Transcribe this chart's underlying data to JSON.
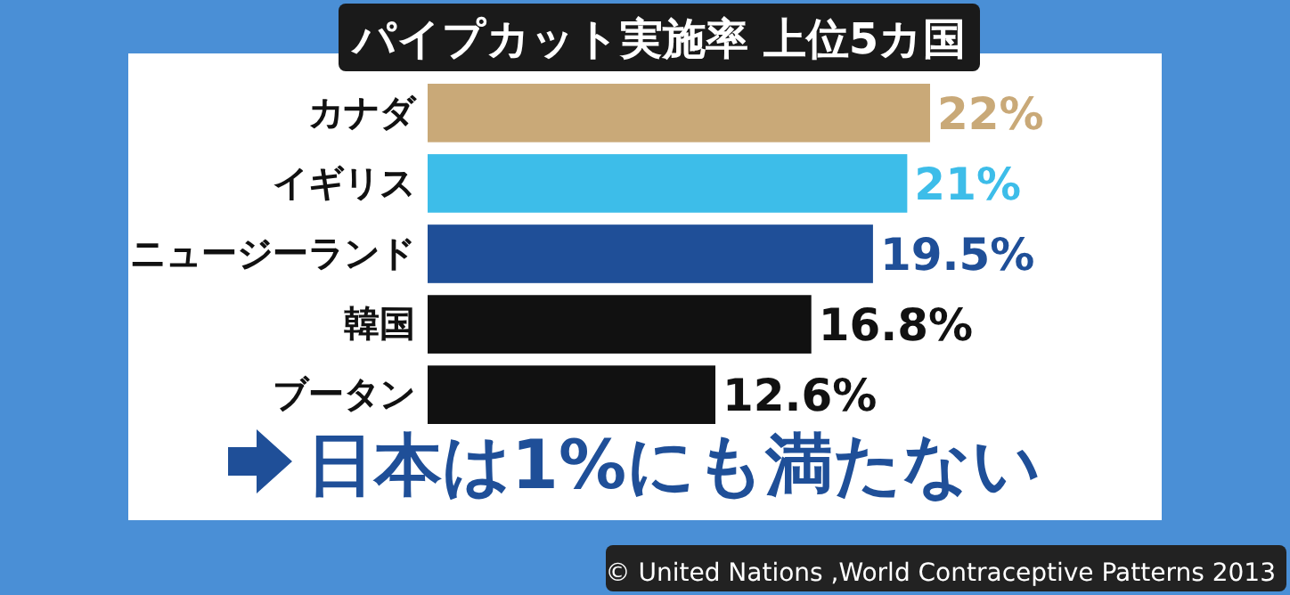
{
  "chart_data": {
    "type": "bar",
    "orientation": "horizontal",
    "title": "パイプカット実施率 上位5カ国",
    "categories": [
      "カナダ",
      "イギリス",
      "ニュージーランド",
      "韓国",
      "ブータン"
    ],
    "values": [
      22,
      21,
      19.5,
      16.8,
      12.6
    ],
    "colors": [
      "#c9a978",
      "#3dbde9",
      "#1f4f98",
      "#111111",
      "#111111"
    ],
    "value_labels": [
      "22%",
      "21%",
      "19.5%",
      "16.8%",
      "12.6%"
    ],
    "annotations": [
      "日本は1%にも満たない",
      "© United Nations ,World Contraceptive Patterns 2013"
    ]
  }
}
